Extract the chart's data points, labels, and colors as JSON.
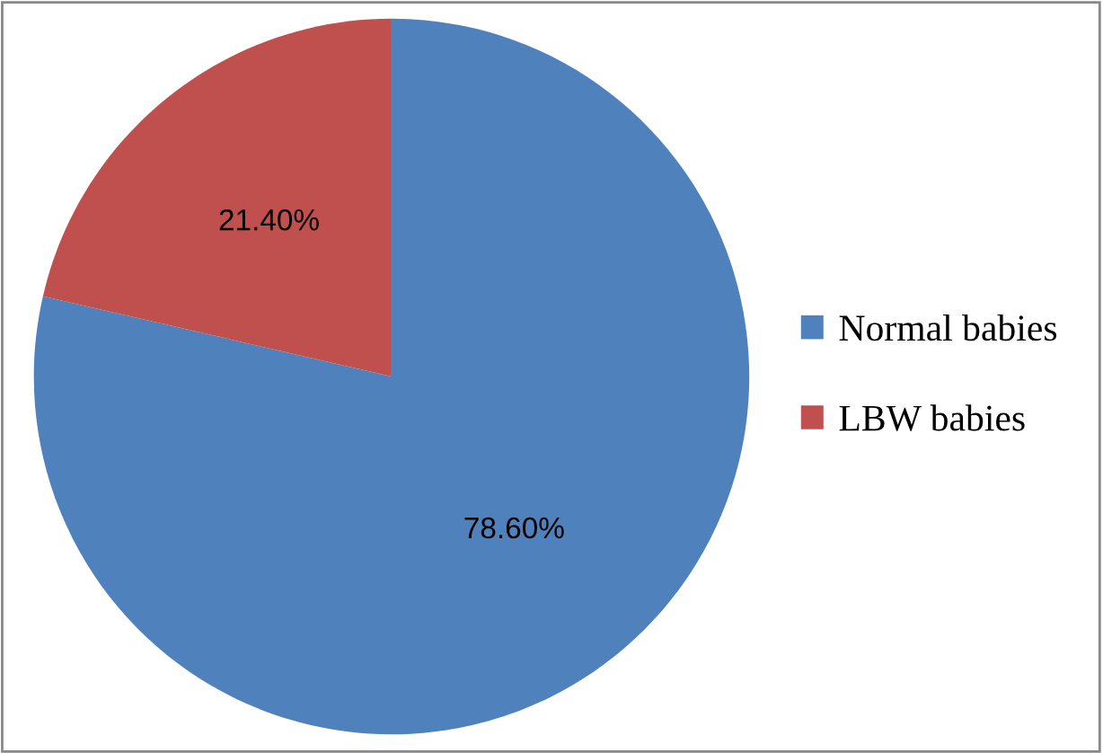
{
  "chart_data": {
    "type": "pie",
    "categories": [
      "Normal babies",
      "LBW babies"
    ],
    "values": [
      78.6,
      21.4
    ],
    "colors": [
      "#4f81bd",
      "#c0504d"
    ],
    "value_labels": [
      "78.60%",
      "21.40%"
    ],
    "legend": "right"
  }
}
